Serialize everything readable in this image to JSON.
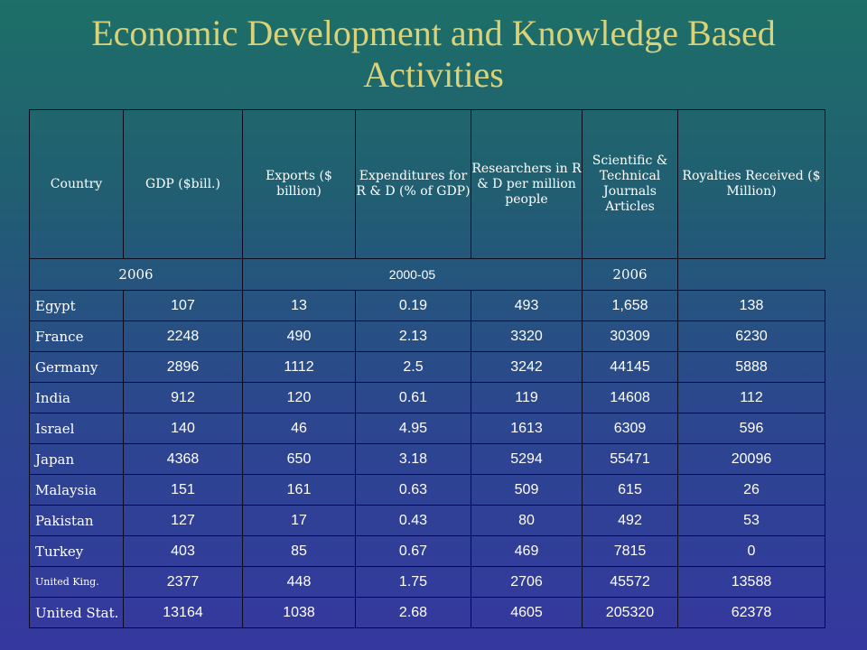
{
  "title_line1": "Economic Development and Knowledge Based",
  "title_line2": "Activities",
  "headers": [
    "Country",
    "GDP ($bill.)",
    "Exports ($ billion)",
    "Expenditures for R & D (% of GDP)",
    "Researchers in R & D per million people",
    "Scientific & Technical Journals Articles",
    "Royalties Received ($ Million)"
  ],
  "years": {
    "left": "2006",
    "middle": "2000-05",
    "right": "2006"
  },
  "rows": [
    [
      "Egypt",
      "107",
      "13",
      "0.19",
      "493",
      "1,658",
      "138"
    ],
    [
      "France",
      "2248",
      "490",
      "2.13",
      "3320",
      "30309",
      "6230"
    ],
    [
      "Germany",
      "2896",
      "1112",
      "2.5",
      "3242",
      "44145",
      "5888"
    ],
    [
      "India",
      "912",
      "120",
      "0.61",
      "119",
      "14608",
      "112"
    ],
    [
      "Israel",
      "140",
      "46",
      "4.95",
      "1613",
      "6309",
      "596"
    ],
    [
      "Japan",
      "4368",
      "650",
      "3.18",
      "5294",
      "55471",
      "20096"
    ],
    [
      "Malaysia",
      "151",
      "161",
      "0.63",
      "509",
      "615",
      "26"
    ],
    [
      "Pakistan",
      "127",
      "17",
      "0.43",
      "80",
      "492",
      "53"
    ],
    [
      "Turkey",
      "403",
      "85",
      "0.67",
      "469",
      "7815",
      "0"
    ],
    [
      "United King.",
      "2377",
      "448",
      "1.75",
      "2706",
      "45572",
      "13588"
    ],
    [
      "United Stat.",
      "13164",
      "1038",
      "2.68",
      "4605",
      "205320",
      "62378"
    ]
  ]
}
